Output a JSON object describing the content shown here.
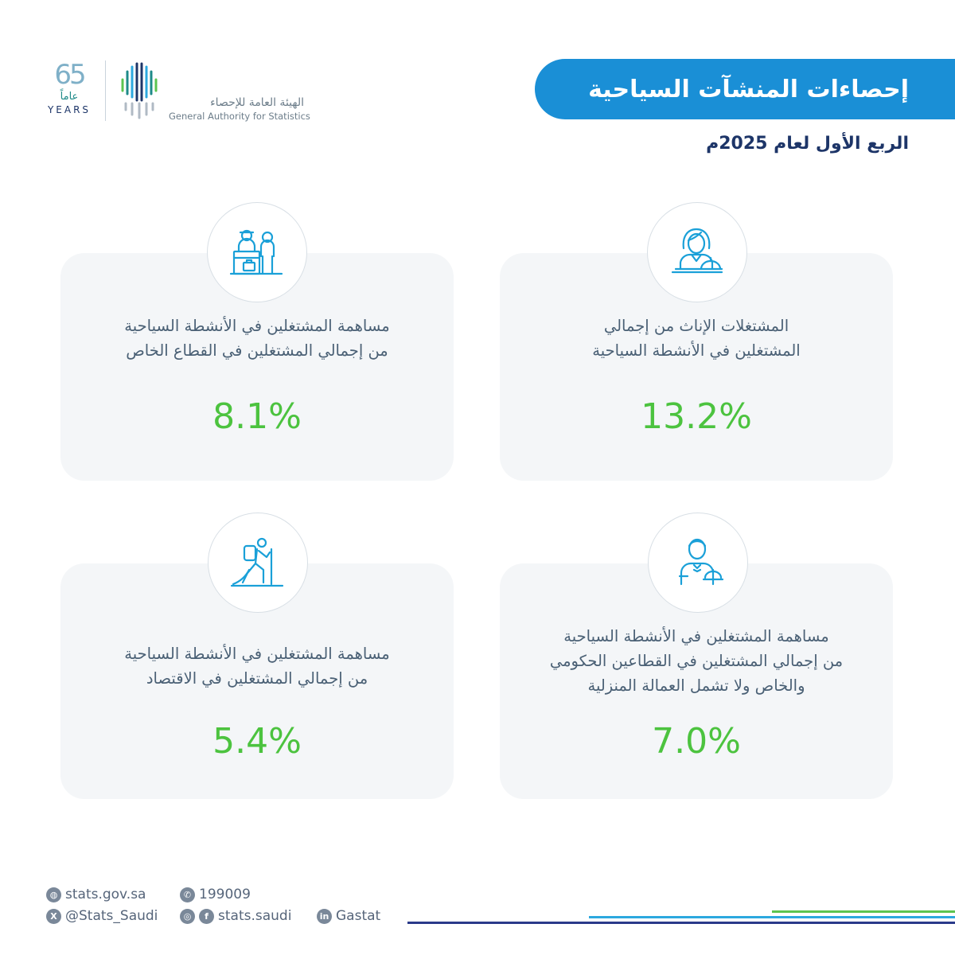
{
  "header": {
    "title": "إحصاءات المنشآت السياحية",
    "subtitle": "الربع الأول لعام 2025م"
  },
  "logo": {
    "years_number": "65",
    "years_ar": "عاماً",
    "years_en": "YEARS",
    "org_ar": "الهيئة العامة للإحصاء",
    "org_en": "General Authority for Statistics"
  },
  "cards": [
    {
      "icon": "hotel-reception-icon",
      "text_line1": "مساهمة المشتغلين في الأنشطة السياحية",
      "text_line2": "من إجمالي المشتغلين في القطاع الخاص",
      "value": "8.1%"
    },
    {
      "icon": "female-receptionist-icon",
      "text_line1": "المشتغلات الإناث من إجمالي",
      "text_line2": "المشتغلين في الأنشطة السياحية",
      "value": "13.2%"
    },
    {
      "icon": "hiker-icon",
      "text_line1": "مساهمة المشتغلين في الأنشطة السياحية",
      "text_line2": "من إجمالي المشتغلين في الاقتصاد",
      "value": "5.4%"
    },
    {
      "icon": "waiter-icon",
      "text_line1": "مساهمة المشتغلين في الأنشطة السياحية",
      "text_line2": "من إجمالي المشتغلين في القطاعين الحكومي",
      "text_line3": "والخاص ولا تشمل العمالة المنزلية",
      "value": "7.0%"
    }
  ],
  "footer": {
    "website": "stats.gov.sa",
    "phone": "199009",
    "x_handle": "@Stats_Saudi",
    "social": "stats.saudi",
    "linkedin": "Gastat"
  },
  "colors": {
    "banner": "#1a8fd6",
    "value": "#4cc33f",
    "card_bg": "#f4f6f8",
    "icon_stroke": "#1aa0d8"
  }
}
